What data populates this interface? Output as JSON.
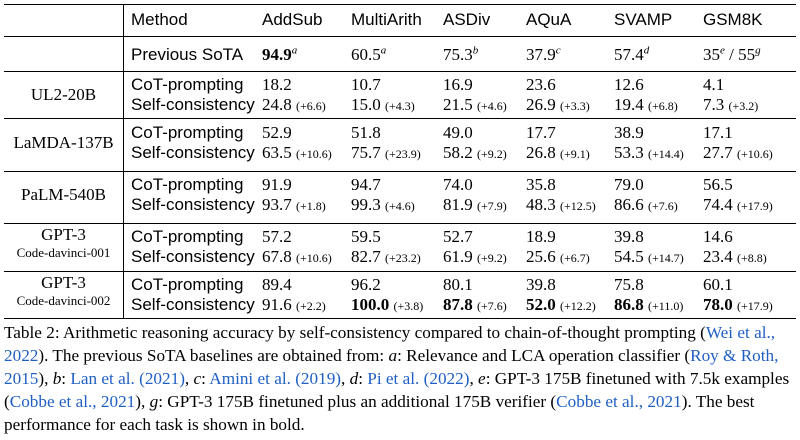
{
  "header": {
    "method": "Method",
    "columns": [
      "AddSub",
      "MultiArith",
      "ASDiv",
      "AQuA",
      "SVAMP",
      "GSM8K"
    ]
  },
  "previous_sota": {
    "label": "Previous SoTA",
    "cells": [
      {
        "value": "94.9",
        "sup": "a"
      },
      {
        "value": "60.5",
        "sup": "a"
      },
      {
        "value": "75.3",
        "sup": "b"
      },
      {
        "value": "37.9",
        "sup": "c"
      },
      {
        "value": "57.4",
        "sup": "d"
      },
      {
        "value": "35",
        "sup": "e",
        "sep": " / ",
        "value2": "55",
        "sup2": "g"
      }
    ]
  },
  "models": [
    {
      "name": "UL2-20B",
      "subname": "",
      "cot_label": "CoT-prompting",
      "sc_label": "Self-consistency",
      "cot": [
        "18.2",
        "10.7",
        "16.9",
        "23.6",
        "12.6",
        "4.1"
      ],
      "sc": [
        {
          "v": "24.8",
          "g": "(+6.6)"
        },
        {
          "v": "15.0",
          "g": "(+4.3)"
        },
        {
          "v": "21.5",
          "g": "(+4.6)"
        },
        {
          "v": "26.9",
          "g": "(+3.3)"
        },
        {
          "v": "19.4",
          "g": "(+6.8)"
        },
        {
          "v": "7.3",
          "g": "(+3.2)"
        }
      ]
    },
    {
      "name": "LaMDA-137B",
      "subname": "",
      "cot_label": "CoT-prompting",
      "sc_label": "Self-consistency",
      "cot": [
        "52.9",
        "51.8",
        "49.0",
        "17.7",
        "38.9",
        "17.1"
      ],
      "sc": [
        {
          "v": "63.5",
          "g": "(+10.6)"
        },
        {
          "v": "75.7",
          "g": "(+23.9)"
        },
        {
          "v": "58.2",
          "g": "(+9.2)"
        },
        {
          "v": "26.8",
          "g": "(+9.1)"
        },
        {
          "v": "53.3",
          "g": "(+14.4)"
        },
        {
          "v": "27.7",
          "g": "(+10.6)"
        }
      ]
    },
    {
      "name": "PaLM-540B",
      "subname": "",
      "cot_label": "CoT-prompting",
      "sc_label": "Self-consistency",
      "cot": [
        "91.9",
        "94.7",
        "74.0",
        "35.8",
        "79.0",
        "56.5"
      ],
      "sc": [
        {
          "v": "93.7",
          "g": "(+1.8)"
        },
        {
          "v": "99.3",
          "g": "(+4.6)"
        },
        {
          "v": "81.9",
          "g": "(+7.9)"
        },
        {
          "v": "48.3",
          "g": "(+12.5)"
        },
        {
          "v": "86.6",
          "g": "(+7.6)"
        },
        {
          "v": "74.4",
          "g": "(+17.9)"
        }
      ]
    },
    {
      "name": "GPT-3",
      "subname": "Code-davinci-001",
      "cot_label": "CoT-prompting",
      "sc_label": "Self-consistency",
      "cot": [
        "57.2",
        "59.5",
        "52.7",
        "18.9",
        "39.8",
        "14.6"
      ],
      "sc": [
        {
          "v": "67.8",
          "g": "(+10.6)"
        },
        {
          "v": "82.7",
          "g": "(+23.2)"
        },
        {
          "v": "61.9",
          "g": "(+9.2)"
        },
        {
          "v": "25.6",
          "g": "(+6.7)"
        },
        {
          "v": "54.5",
          "g": "(+14.7)"
        },
        {
          "v": "23.4",
          "g": "(+8.8)"
        }
      ]
    },
    {
      "name": "GPT-3",
      "subname": "Code-davinci-002",
      "cot_label": "CoT-prompting",
      "sc_label": "Self-consistency",
      "cot": [
        "89.4",
        "96.2",
        "80.1",
        "39.8",
        "75.8",
        "60.1"
      ],
      "sc": [
        {
          "v": "91.6",
          "g": "(+2.2)"
        },
        {
          "v": "100.0",
          "g": "(+3.8)"
        },
        {
          "v": "87.8",
          "g": "(+7.6)"
        },
        {
          "v": "52.0",
          "g": "(+12.2)"
        },
        {
          "v": "86.8",
          "g": "(+11.0)"
        },
        {
          "v": "78.0",
          "g": "(+17.9)"
        }
      ]
    }
  ],
  "caption": {
    "p1": "Table 2: Arithmetic reasoning accuracy by self-consistency compared to chain-of-thought prompting (",
    "cite1": "Wei et al., 2022",
    "p2": "). The previous SoTA baselines are obtained from: ",
    "a": "a",
    "p3": ": Relevance and LCA operation classifier (",
    "cite2": "Roy & Roth, 2015",
    "p4": "), ",
    "b": "b",
    "p5": ": ",
    "cite3": "Lan et al. (2021)",
    "p6": ", ",
    "c": "c",
    "p7": ": ",
    "cite4": "Amini et al. (2019)",
    "p8": ", ",
    "d": "d",
    "p9": ": ",
    "cite5": "Pi et al. (2022)",
    "p10": ", ",
    "e": "e",
    "p11": ": GPT-3 175B finetuned with 7.5k examples (",
    "cite6": "Cobbe et al., 2021",
    "p12": "), ",
    "g": "g",
    "p13": ": GPT-3 175B finetuned plus an additional 175B verifier (",
    "cite7": "Cobbe et al., 2021",
    "p14": "). The best performance for each task is shown in bold."
  }
}
